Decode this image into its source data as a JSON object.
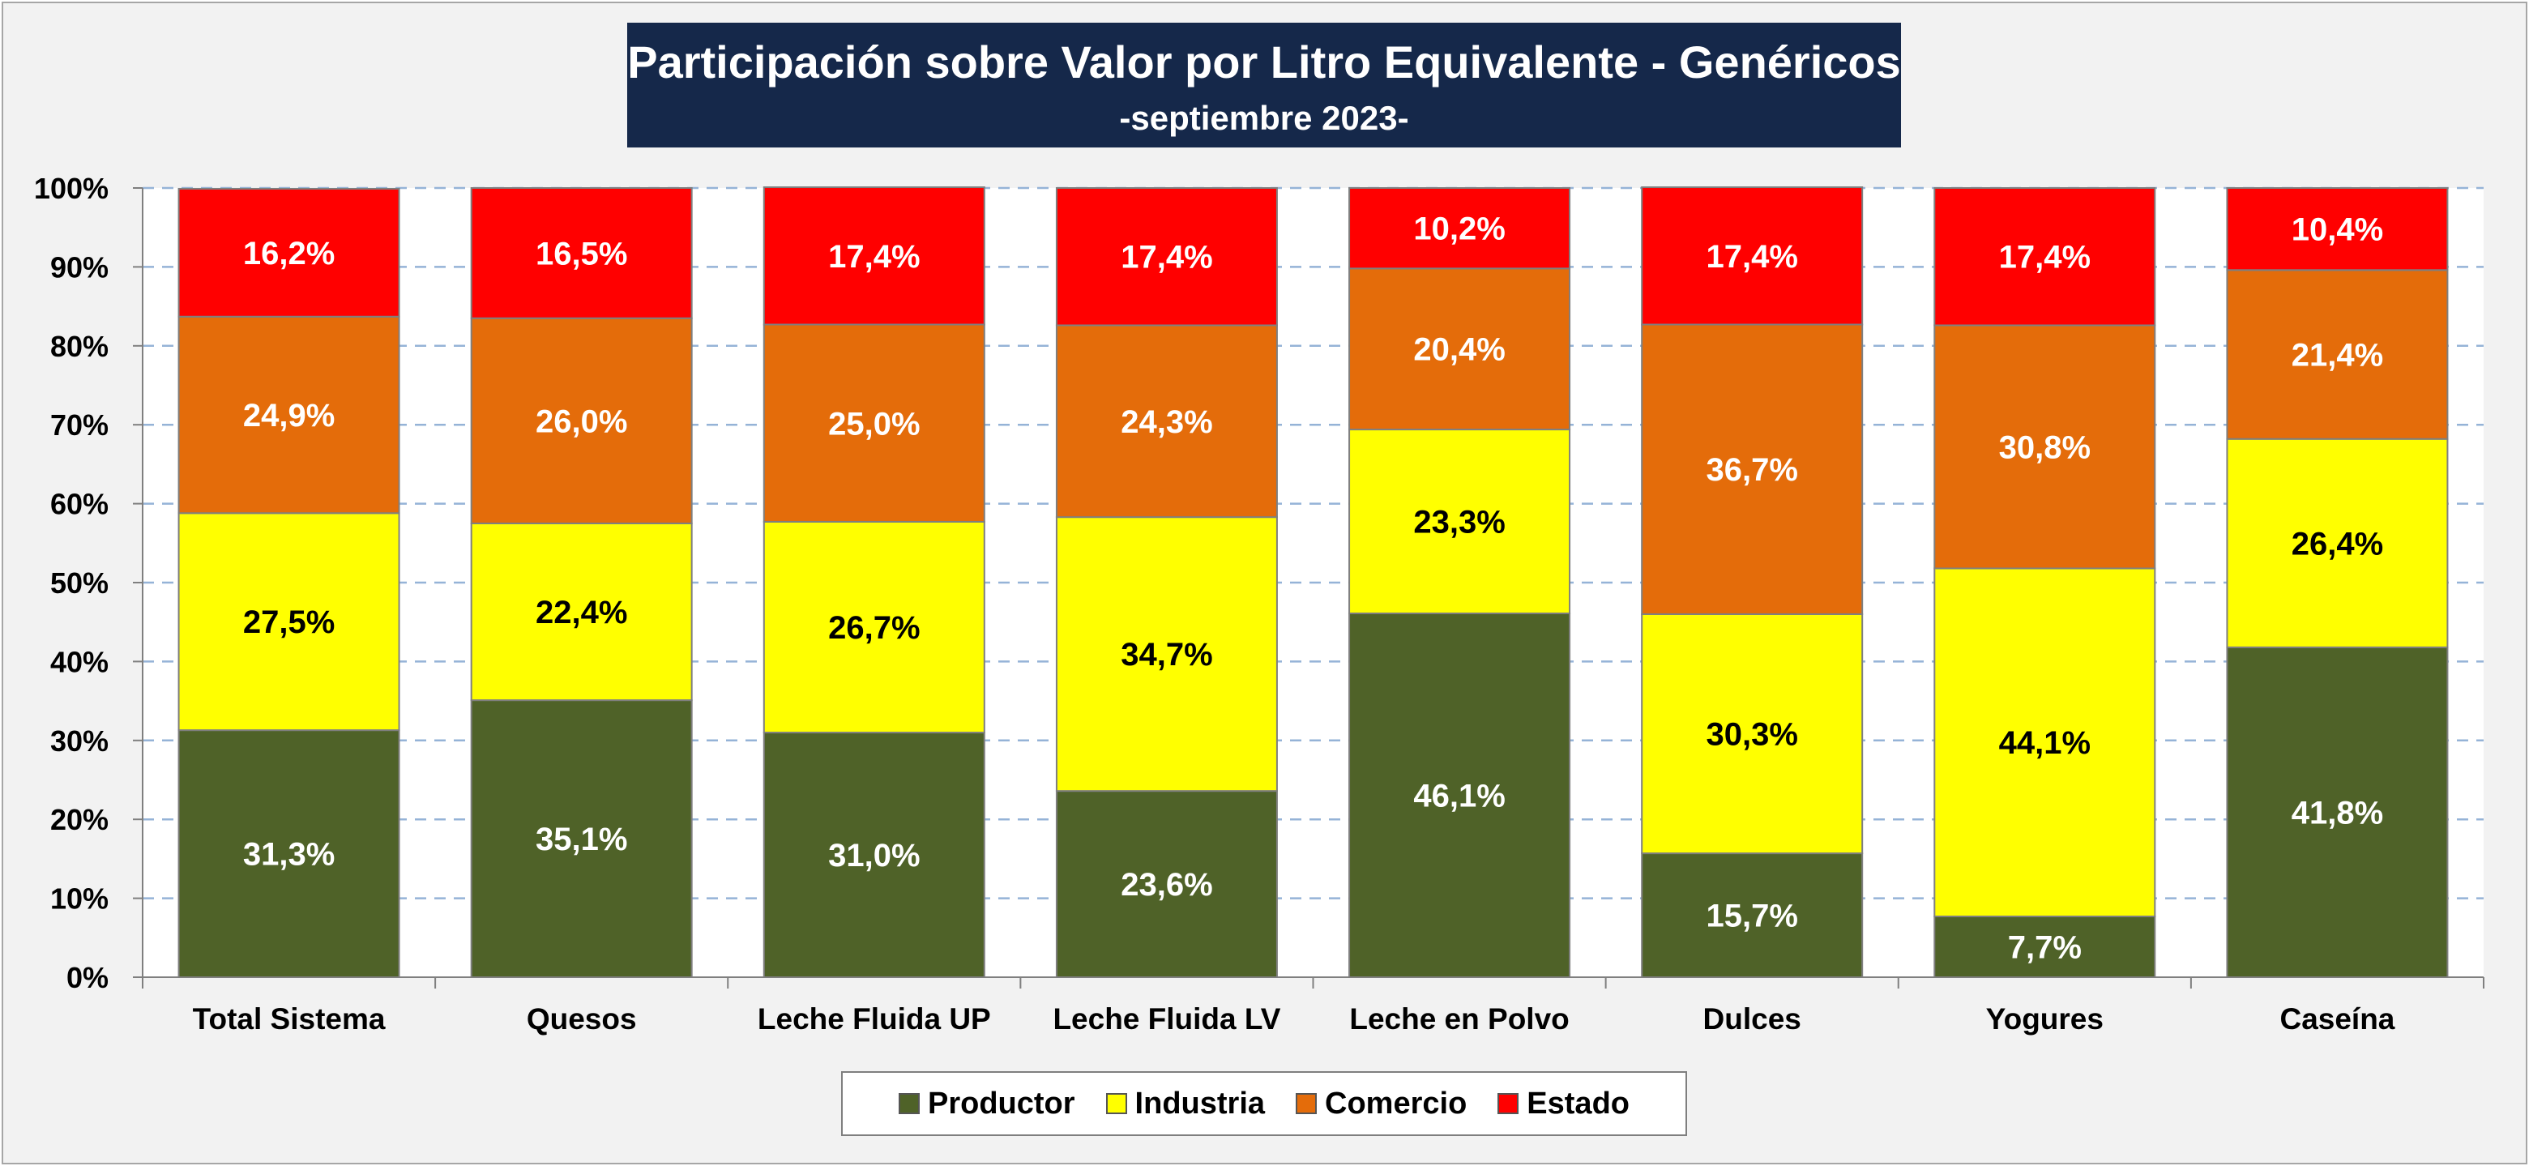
{
  "chart_data": {
    "type": "bar",
    "stacked": true,
    "title": "Participación sobre Valor por Litro Equivalente - Genéricos",
    "subtitle": "-septiembre 2023-",
    "categories": [
      "Total Sistema",
      "Quesos",
      "Leche Fluida UP",
      "Leche Fluida LV",
      "Leche en Polvo",
      "Dulces",
      "Yogures",
      "Caseína"
    ],
    "y_ticks": [
      "0%",
      "10%",
      "20%",
      "30%",
      "40%",
      "50%",
      "60%",
      "70%",
      "80%",
      "90%",
      "100%"
    ],
    "ylim": [
      0,
      100
    ],
    "grid": true,
    "legend_position": "bottom",
    "series": [
      {
        "name": "Productor",
        "color": "#4f6228",
        "label_color": "#ffffff",
        "values": [
          31.3,
          35.1,
          31.0,
          23.6,
          46.1,
          15.7,
          7.7,
          41.8
        ],
        "labels": [
          "31,3%",
          "35,1%",
          "31,0%",
          "23,6%",
          "46,1%",
          "15,7%",
          "7,7%",
          "41,8%"
        ]
      },
      {
        "name": "Industria",
        "color": "#ffff00",
        "label_color": "#000000",
        "values": [
          27.5,
          22.4,
          26.7,
          34.7,
          23.3,
          30.3,
          44.1,
          26.4
        ],
        "labels": [
          "27,5%",
          "22,4%",
          "26,7%",
          "34,7%",
          "23,3%",
          "30,3%",
          "44,1%",
          "26,4%"
        ]
      },
      {
        "name": "Comercio",
        "color": "#e46c0a",
        "label_color": "#ffffff",
        "values": [
          24.9,
          26.0,
          25.0,
          24.3,
          20.4,
          36.7,
          30.8,
          21.4
        ],
        "labels": [
          "24,9%",
          "26,0%",
          "25,0%",
          "24,3%",
          "20,4%",
          "36,7%",
          "30,8%",
          "21,4%"
        ]
      },
      {
        "name": "Estado",
        "color": "#ff0000",
        "label_color": "#ffffff",
        "values": [
          16.2,
          16.5,
          17.4,
          17.4,
          10.2,
          17.4,
          17.4,
          10.4
        ],
        "labels": [
          "16,2%",
          "16,5%",
          "17,4%",
          "17,4%",
          "10,2%",
          "17,4%",
          "17,4%",
          "10,4%"
        ]
      }
    ]
  }
}
